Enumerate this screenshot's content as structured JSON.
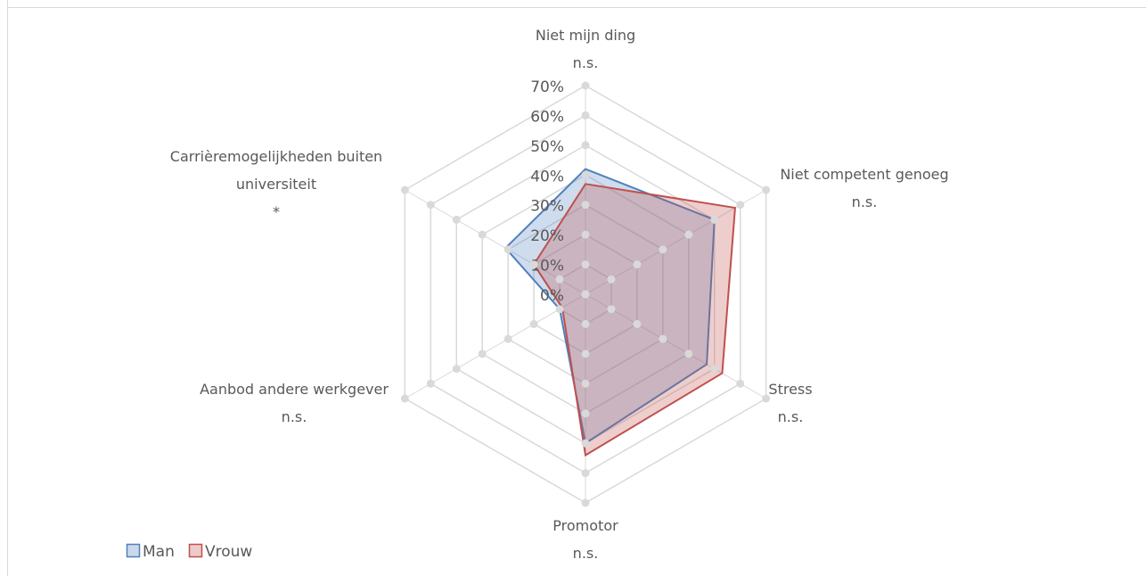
{
  "chart_data": {
    "type": "radar",
    "categories": [
      "Niet mijn ding",
      "Niet competent genoeg",
      "Stress",
      "Promotor",
      "Aanbod andere werkgever",
      "Carrièremogelijkheden buiten universiteit"
    ],
    "significance": [
      "n.s.",
      "n.s.",
      "n.s.",
      "n.s.",
      "n.s.",
      "*"
    ],
    "series": [
      {
        "name": "Man",
        "color": "#4f81bd",
        "values": [
          42,
          50,
          47,
          50,
          10,
          31
        ]
      },
      {
        "name": "Vrouw",
        "color": "#c0504d",
        "values": [
          37,
          58,
          53,
          54,
          9,
          20
        ]
      }
    ],
    "ylim": [
      0,
      70
    ],
    "yticks": [
      {
        "value": 0,
        "label": "0%"
      },
      {
        "value": 10,
        "label": "10%"
      },
      {
        "value": 20,
        "label": "20%"
      },
      {
        "value": 30,
        "label": "30%"
      },
      {
        "value": 40,
        "label": "40%"
      },
      {
        "value": 50,
        "label": "50%"
      },
      {
        "value": 60,
        "label": "60%"
      },
      {
        "value": 70,
        "label": "70%"
      }
    ],
    "grid": true,
    "legend": "bottom-left"
  }
}
